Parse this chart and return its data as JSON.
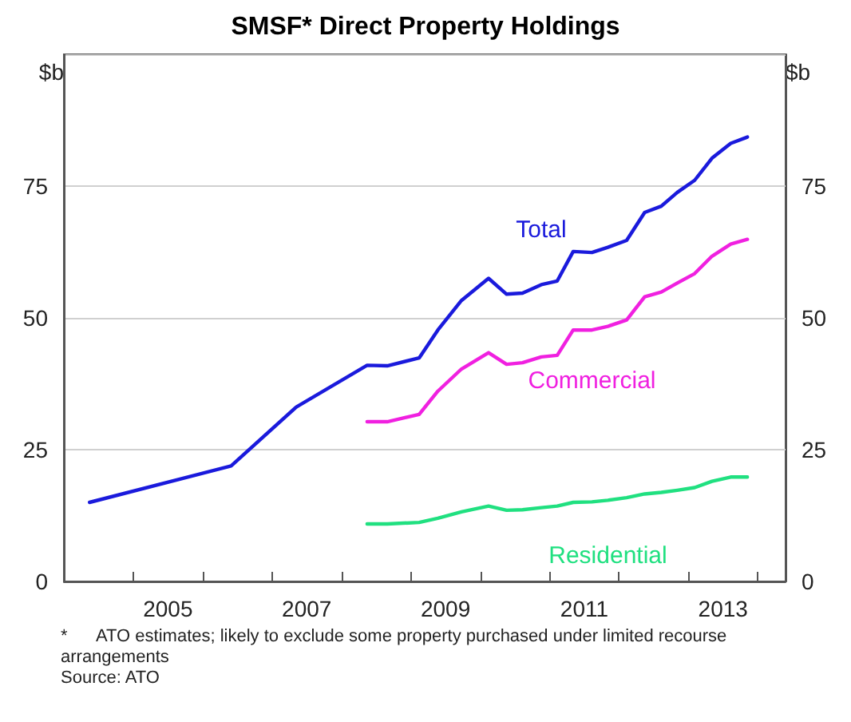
{
  "chart_data": {
    "type": "line",
    "title": "SMSF* Direct Property Holdings",
    "ylabel": "$b",
    "y2label": "$b",
    "series": [
      {
        "name": "Total",
        "color": "#1a1adc",
        "x": [
          2004.37,
          2006.41,
          2007.35,
          2008.37,
          2008.66,
          2009.12,
          2009.39,
          2009.73,
          2010.12,
          2010.38,
          2010.61,
          2010.88,
          2011.11,
          2011.34,
          2011.61,
          2011.84,
          2012.11,
          2012.37,
          2012.61,
          2012.84,
          2013.09,
          2013.34,
          2013.61,
          2013.85
        ],
        "values": [
          15.0,
          21.9,
          33.1,
          41.0,
          40.9,
          42.4,
          47.7,
          53.3,
          57.5,
          54.5,
          54.7,
          56.3,
          57.0,
          62.6,
          62.4,
          63.4,
          64.7,
          70.0,
          71.2,
          73.8,
          76.1,
          80.3,
          83.1,
          84.3
        ]
      },
      {
        "name": "Commercial",
        "color": "#f020e0",
        "x": [
          2008.37,
          2008.66,
          2009.12,
          2009.39,
          2009.73,
          2010.12,
          2010.38,
          2010.61,
          2010.88,
          2011.11,
          2011.34,
          2011.61,
          2011.84,
          2012.11,
          2012.37,
          2012.61,
          2012.84,
          2013.09,
          2013.34,
          2013.61,
          2013.85
        ],
        "values": [
          30.3,
          30.3,
          31.7,
          36.1,
          40.3,
          43.4,
          41.2,
          41.5,
          42.6,
          42.9,
          47.7,
          47.7,
          48.4,
          49.6,
          54.0,
          54.9,
          56.6,
          58.4,
          61.7,
          64.0,
          64.9
        ]
      },
      {
        "name": "Residential",
        "color": "#20e080",
        "x": [
          2008.37,
          2008.66,
          2009.12,
          2009.39,
          2009.73,
          2010.12,
          2010.38,
          2010.61,
          2010.88,
          2011.11,
          2011.34,
          2011.61,
          2011.84,
          2012.11,
          2012.37,
          2012.61,
          2012.84,
          2013.09,
          2013.34,
          2013.61,
          2013.85
        ],
        "values": [
          10.9,
          10.9,
          11.2,
          12.0,
          13.2,
          14.3,
          13.5,
          13.6,
          14.0,
          14.3,
          15.0,
          15.1,
          15.4,
          15.9,
          16.6,
          16.9,
          17.3,
          17.8,
          19.0,
          19.8,
          19.8
        ]
      }
    ],
    "xlim": [
      2004.0,
      2014.4
    ],
    "xticks": [
      {
        "value": 2005,
        "label": null
      },
      {
        "value": 2005.5,
        "label": "2005"
      },
      {
        "value": 2006,
        "label": null
      },
      {
        "value": 2007,
        "label": null
      },
      {
        "value": 2007.5,
        "label": "2007"
      },
      {
        "value": 2008,
        "label": null
      },
      {
        "value": 2009,
        "label": null
      },
      {
        "value": 2009.5,
        "label": "2009"
      },
      {
        "value": 2010,
        "label": null
      },
      {
        "value": 2011,
        "label": null
      },
      {
        "value": 2011.5,
        "label": "2011"
      },
      {
        "value": 2012,
        "label": null
      },
      {
        "value": 2013,
        "label": null
      },
      {
        "value": 2013.5,
        "label": "2013"
      },
      {
        "value": 2014,
        "label": null
      }
    ],
    "ylim": [
      0,
      100
    ],
    "yticks": [
      0,
      25,
      50,
      75
    ],
    "y2lim": [
      0,
      100
    ],
    "y2ticks": [
      0,
      25,
      50,
      75
    ],
    "grid": "y",
    "legend": false,
    "marker": "none",
    "line_style": "solid",
    "annotations": [
      "*      ATO estimates; likely to exclude some property purchased under limited recourse arrangements",
      "Source: ATO"
    ]
  }
}
